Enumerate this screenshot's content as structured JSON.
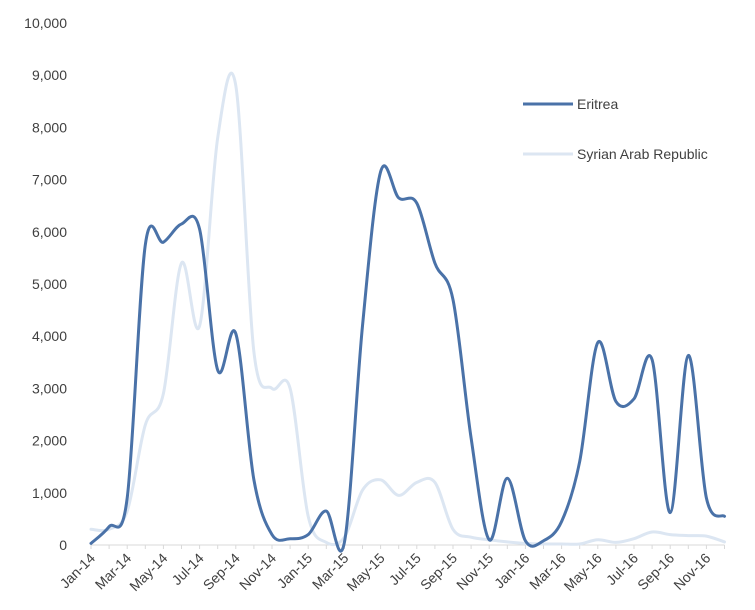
{
  "chart_data": {
    "type": "line",
    "title": "",
    "xlabel": "",
    "ylabel": "",
    "ylim": [
      0,
      10000
    ],
    "yticks": [
      "0",
      "1,000",
      "2,000",
      "3,000",
      "4,000",
      "5,000",
      "6,000",
      "7,000",
      "8,000",
      "9,000",
      "10,000"
    ],
    "ytick_values": [
      0,
      1000,
      2000,
      3000,
      4000,
      5000,
      6000,
      7000,
      8000,
      9000,
      10000
    ],
    "x_tick_labels": [
      "Jan-14",
      "Mar-14",
      "May-14",
      "Jul-14",
      "Sep-14",
      "Nov-14",
      "Jan-15",
      "Mar-15",
      "May-15",
      "Jul-15",
      "Sep-15",
      "Nov-15",
      "Jan-16",
      "Mar-16",
      "May-16",
      "Jul-16",
      "Sep-16",
      "Nov-16"
    ],
    "categories": [
      "Jan-14",
      "Feb-14",
      "Mar-14",
      "Apr-14",
      "May-14",
      "Jun-14",
      "Jul-14",
      "Aug-14",
      "Sep-14",
      "Oct-14",
      "Nov-14",
      "Dec-14",
      "Jan-15",
      "Feb-15",
      "Mar-15",
      "Apr-15",
      "May-15",
      "Jun-15",
      "Jul-15",
      "Aug-15",
      "Sep-15",
      "Oct-15",
      "Nov-15",
      "Dec-15",
      "Jan-16",
      "Feb-16",
      "Mar-16",
      "Apr-16",
      "May-16",
      "Jun-16",
      "Jul-16",
      "Aug-16",
      "Sep-16",
      "Oct-16",
      "Nov-16",
      "Dec-16"
    ],
    "grid": false,
    "legend_position": "right",
    "series": [
      {
        "name": "Eritrea",
        "color": "#4a72a8",
        "values": [
          30,
          350,
          900,
          5750,
          5800,
          6150,
          6050,
          3350,
          4050,
          1250,
          200,
          120,
          200,
          650,
          50,
          4200,
          7150,
          6650,
          6550,
          5400,
          4700,
          2050,
          100,
          1280,
          80,
          80,
          450,
          1600,
          3880,
          2750,
          2800,
          3550,
          620,
          3630,
          900,
          550
        ]
      },
      {
        "name": "Syrian Arab Republic",
        "color": "#dce6f2",
        "values": [
          300,
          300,
          650,
          2300,
          2900,
          5400,
          4200,
          7800,
          8800,
          3700,
          3000,
          3000,
          550,
          50,
          150,
          1050,
          1250,
          950,
          1200,
          1200,
          300,
          150,
          100,
          60,
          30,
          20,
          20,
          20,
          100,
          50,
          120,
          250,
          200,
          180,
          170,
          60
        ]
      }
    ]
  }
}
